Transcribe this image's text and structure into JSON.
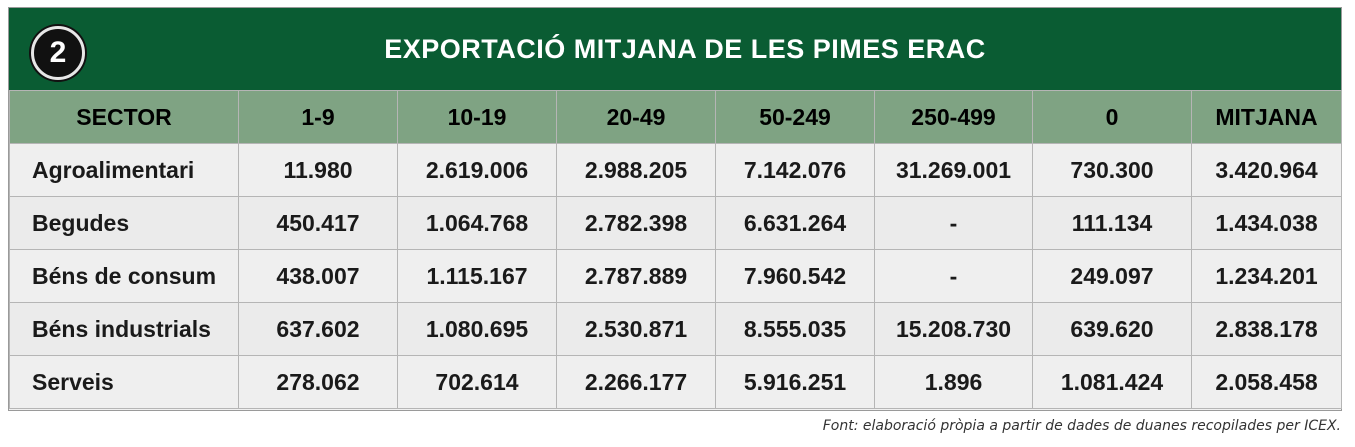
{
  "badge": "2",
  "title": "EXPORTACIÓ MITJANA DE LES PIMES ERAC",
  "columns": [
    "SECTOR",
    "1-9",
    "10-19",
    "20-49",
    "50-249",
    "250-499",
    "0",
    "MITJANA"
  ],
  "rows": [
    [
      "Agroalimentari",
      "11.980",
      "2.619.006",
      "2.988.205",
      "7.142.076",
      "31.269.001",
      "730.300",
      "3.420.964"
    ],
    [
      "Begudes",
      "450.417",
      "1.064.768",
      "2.782.398",
      "6.631.264",
      "-",
      "111.134",
      "1.434.038"
    ],
    [
      "Béns de consum",
      "438.007",
      "1.115.167",
      "2.787.889",
      "7.960.542",
      "-",
      "249.097",
      "1.234.201"
    ],
    [
      "Béns industrials",
      "637.602",
      "1.080.695",
      "2.530.871",
      "8.555.035",
      "15.208.730",
      "639.620",
      "2.838.178"
    ],
    [
      "Serveis",
      "278.062",
      "702.614",
      "2.266.177",
      "5.916.251",
      "1.896",
      "1.081.424",
      "2.058.458"
    ]
  ],
  "source": "Font: elaboració pròpia a partir de dades de duanes recopilades per ICEX."
}
